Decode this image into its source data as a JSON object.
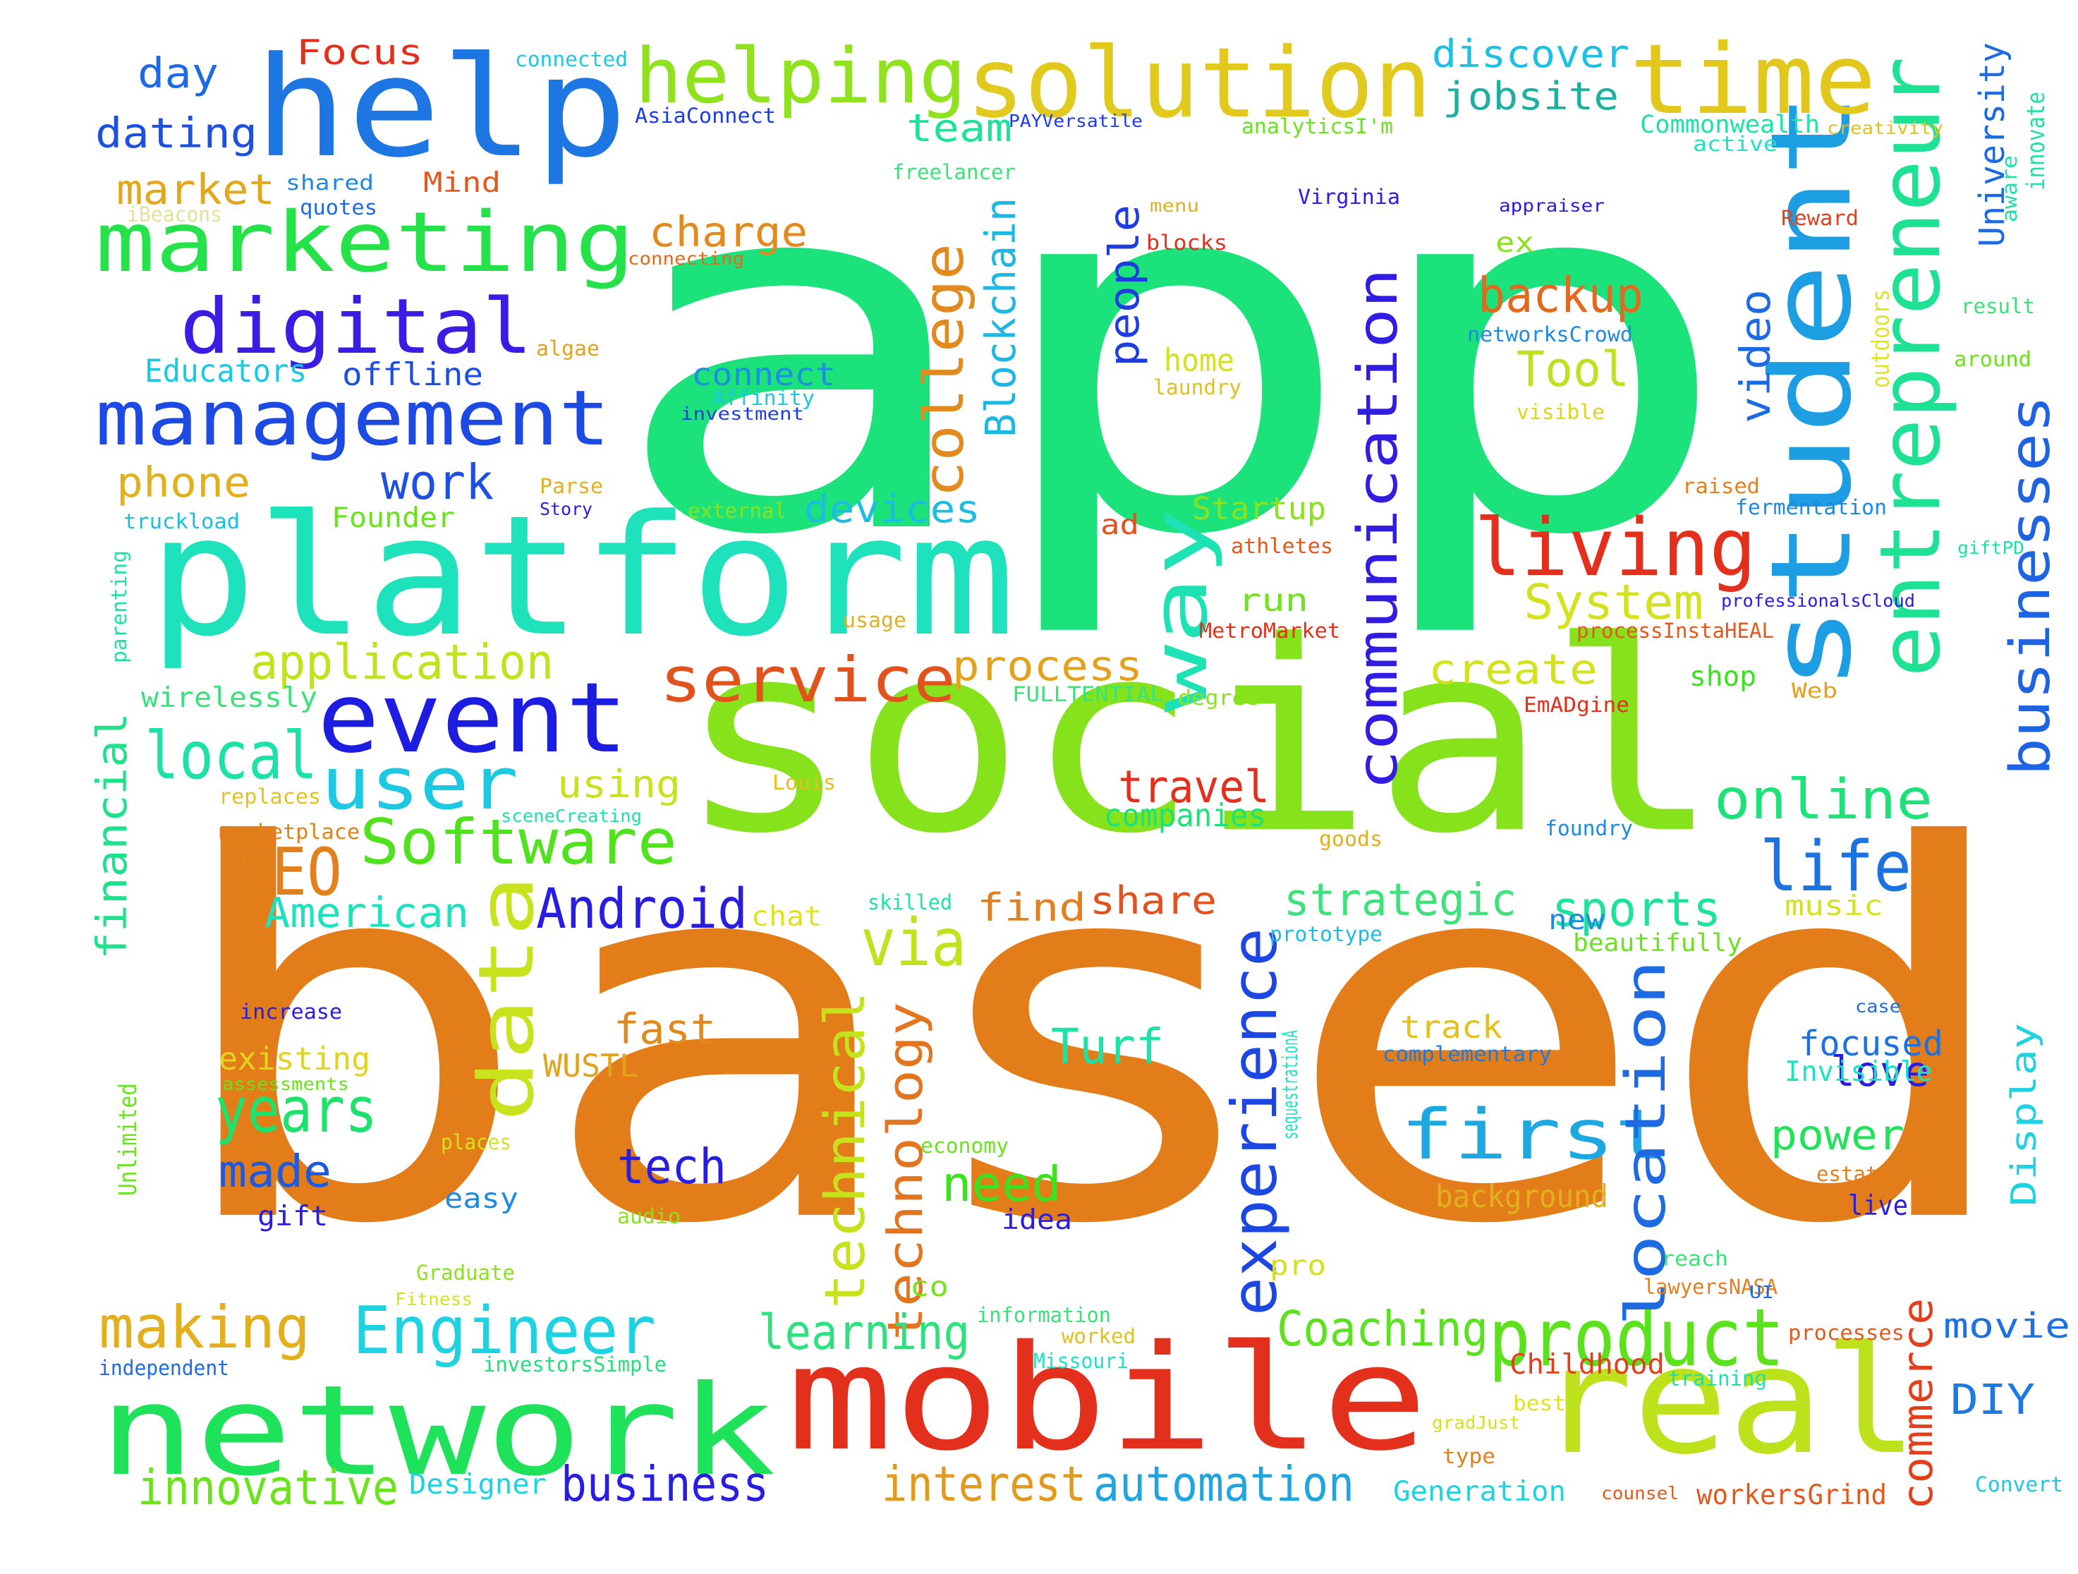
{
  "words": [
    {
      "text": "based",
      "color": "#e27d1a"
    },
    {
      "text": "app",
      "color": "#1be27a"
    },
    {
      "text": "social",
      "color": "#86e21b"
    },
    {
      "text": "network",
      "color": "#1de25a"
    },
    {
      "text": "mobile",
      "color": "#e2301d"
    },
    {
      "text": "real",
      "color": "#bde21b"
    },
    {
      "text": "platform",
      "color": "#1de2bb"
    },
    {
      "text": "help",
      "color": "#1d76e2"
    },
    {
      "text": "solution",
      "color": "#e2c91d"
    },
    {
      "text": "student",
      "color": "#1d9ee2"
    },
    {
      "text": "entrepreneur",
      "color": "#1de294"
    },
    {
      "text": "marketing",
      "color": "#25e24a"
    },
    {
      "text": "digital",
      "color": "#3a1de2"
    },
    {
      "text": "management",
      "color": "#1d4ae2"
    },
    {
      "text": "time",
      "color": "#e2c71d"
    },
    {
      "text": "helping",
      "color": "#8fe21d"
    },
    {
      "text": "event",
      "color": "#1d1de2"
    },
    {
      "text": "user",
      "color": "#1dc8e2"
    },
    {
      "text": "data",
      "color": "#c8e21d"
    },
    {
      "text": "product",
      "color": "#5be21d"
    },
    {
      "text": "living",
      "color": "#e2301d"
    },
    {
      "text": "businesses",
      "color": "#1d63e2"
    },
    {
      "text": "service",
      "color": "#e2521d"
    },
    {
      "text": "communication",
      "color": "#311de2"
    },
    {
      "text": "way",
      "color": "#1de2b5"
    },
    {
      "text": "Engineer",
      "color": "#1dd3e2"
    },
    {
      "text": "experience",
      "color": "#1d47e2"
    },
    {
      "text": "first",
      "color": "#1da8e2"
    },
    {
      "text": "Software",
      "color": "#4fe21d"
    },
    {
      "text": "location",
      "color": "#1d6ae2"
    },
    {
      "text": "making",
      "color": "#e2b01d"
    },
    {
      "text": "life",
      "color": "#1d72e2"
    },
    {
      "text": "Android",
      "color": "#2a1de2"
    },
    {
      "text": "college",
      "color": "#e28a1d"
    },
    {
      "text": "online",
      "color": "#1de27a"
    },
    {
      "text": "CEO",
      "color": "#e2801d"
    },
    {
      "text": "local",
      "color": "#1de2a8"
    },
    {
      "text": "via",
      "color": "#c1e21d"
    },
    {
      "text": "technical",
      "color": "#c6e21d"
    },
    {
      "text": "technology",
      "color": "#e2751d"
    },
    {
      "text": "commerce",
      "color": "#e2401d"
    },
    {
      "text": "Coaching",
      "color": "#5ae21d"
    },
    {
      "text": "learning",
      "color": "#2de27e"
    },
    {
      "text": "years",
      "color": "#1de26e"
    },
    {
      "text": "financial",
      "color": "#1de28a"
    },
    {
      "text": "application",
      "color": "#c1e21d"
    },
    {
      "text": "automation",
      "color": "#1da6e2"
    },
    {
      "text": "innovative",
      "color": "#6ce21d"
    },
    {
      "text": "business",
      "color": "#2a1de2"
    },
    {
      "text": "interest",
      "color": "#e29a1d"
    },
    {
      "text": "Blockchain",
      "color": "#1db8e2"
    },
    {
      "text": "backup",
      "color": "#e2691d"
    },
    {
      "text": "Tool",
      "color": "#bde21d"
    },
    {
      "text": "System",
      "color": "#d3e21d"
    },
    {
      "text": "video",
      "color": "#1d6ae2"
    },
    {
      "text": "University",
      "color": "#1d6ae2"
    },
    {
      "text": "travel",
      "color": "#e2301d"
    },
    {
      "text": "strategic",
      "color": "#3de27a"
    },
    {
      "text": "sports",
      "color": "#1de29e"
    },
    {
      "text": "American",
      "color": "#1de2c0"
    },
    {
      "text": "Turf",
      "color": "#1de2a8"
    },
    {
      "text": "need",
      "color": "#3ce21d"
    },
    {
      "text": "tech",
      "color": "#2a1de2"
    },
    {
      "text": "made",
      "color": "#1d5ae2"
    },
    {
      "text": "fast",
      "color": "#e2891d"
    },
    {
      "text": "power",
      "color": "#21e25a"
    },
    {
      "text": "love",
      "color": "#2a1de2"
    },
    {
      "text": "focused",
      "color": "#1d72e2"
    },
    {
      "text": "Display",
      "color": "#1dd3e2"
    },
    {
      "text": "DIY",
      "color": "#1d7ae2"
    },
    {
      "text": "movie",
      "color": "#1d72e2"
    },
    {
      "text": "create",
      "color": "#d3e21d"
    },
    {
      "text": "process",
      "color": "#e2a21d"
    },
    {
      "text": "devices",
      "color": "#1dbde2"
    },
    {
      "text": "people",
      "color": "#1d3de2"
    },
    {
      "text": "charge",
      "color": "#e28a1d"
    },
    {
      "text": "jobsite",
      "color": "#1db0a0"
    },
    {
      "text": "discover",
      "color": "#1dc0e2"
    },
    {
      "text": "team",
      "color": "#1de29a"
    },
    {
      "text": "work",
      "color": "#1d50e2"
    },
    {
      "text": "phone",
      "color": "#e2b01d"
    },
    {
      "text": "market",
      "color": "#e2a81d"
    },
    {
      "text": "day",
      "color": "#1d6ae2"
    },
    {
      "text": "dating",
      "color": "#1d50e2"
    },
    {
      "text": "Focus",
      "color": "#e2301d"
    },
    {
      "text": "Educators",
      "color": "#1dc8e2"
    },
    {
      "text": "offline",
      "color": "#1d50e2"
    },
    {
      "text": "connect",
      "color": "#1d90e2"
    },
    {
      "text": "home",
      "color": "#d3e21d"
    },
    {
      "text": "run",
      "color": "#72e21d"
    },
    {
      "text": "Startup",
      "color": "#8ae21d"
    },
    {
      "text": "using",
      "color": "#c8e21d"
    },
    {
      "text": "find",
      "color": "#e2801d"
    },
    {
      "text": "share",
      "color": "#e2521d"
    },
    {
      "text": "companies",
      "color": "#1de27a"
    },
    {
      "text": "wirelessly",
      "color": "#3ae27a"
    },
    {
      "text": "existing",
      "color": "#e2d31d"
    },
    {
      "text": "WUSTL",
      "color": "#e2a21d"
    },
    {
      "text": "track",
      "color": "#e2c01d"
    },
    {
      "text": "complementary",
      "color": "#1d7ae2"
    },
    {
      "text": "Invisible",
      "color": "#1de2c8"
    },
    {
      "text": "background",
      "color": "#e2b01d"
    },
    {
      "text": "easy",
      "color": "#1d8ae2"
    },
    {
      "text": "idea",
      "color": "#2a1de2"
    },
    {
      "text": "gift",
      "color": "#2a1de2"
    },
    {
      "text": "shop",
      "color": "#3ae21d"
    },
    {
      "text": "new",
      "color": "#1d8ae2"
    },
    {
      "text": "music",
      "color": "#d3e21d"
    },
    {
      "text": "beautifully",
      "color": "#6ae21d"
    },
    {
      "text": "co",
      "color": "#7ae21d"
    },
    {
      "text": "pro",
      "color": "#d3e21d"
    },
    {
      "text": "live",
      "color": "#2a1de2"
    },
    {
      "text": "Childhood",
      "color": "#e2401d"
    },
    {
      "text": "Generation",
      "color": "#1dd3e2"
    },
    {
      "text": "Designer",
      "color": "#1dd3e2"
    },
    {
      "text": "ad",
      "color": "#e2501d"
    },
    {
      "text": "ex",
      "color": "#8ae21d"
    },
    {
      "text": "Founder",
      "color": "#6ae21d"
    },
    {
      "text": "connected",
      "color": "#1dc8e2"
    },
    {
      "text": "Mind",
      "color": "#e2591d"
    },
    {
      "text": "quotes",
      "color": "#1d6ae2"
    },
    {
      "text": "shared",
      "color": "#1d8ae2"
    },
    {
      "text": "iBeacons",
      "color": "#e2e29a"
    },
    {
      "text": "AsiaConnect",
      "color": "#1d3de2"
    },
    {
      "text": "freelancer",
      "color": "#3ae27a"
    },
    {
      "text": "PAYVersatile",
      "color": "#1d3de2"
    },
    {
      "text": "analyticsI'm",
      "color": "#6ae21d"
    },
    {
      "text": "Commonwealth",
      "color": "#1de2a8"
    },
    {
      "text": "active",
      "color": "#1de2c8"
    },
    {
      "text": "creativity",
      "color": "#e2c01d"
    },
    {
      "text": "innovate",
      "color": "#1de2a8"
    },
    {
      "text": "aware",
      "color": "#1de2a8"
    },
    {
      "text": "menu",
      "color": "#e2b01d"
    },
    {
      "text": "Virginia",
      "color": "#2a1de2"
    },
    {
      "text": "appraiser",
      "color": "#2a1de2"
    },
    {
      "text": "Reward",
      "color": "#e2401d"
    },
    {
      "text": "blocks",
      "color": "#e2301d"
    },
    {
      "text": "connecting",
      "color": "#e26a1d"
    },
    {
      "text": "algae",
      "color": "#e2a21d"
    },
    {
      "text": "networksCrowd",
      "color": "#1d8ae2"
    },
    {
      "text": "result",
      "color": "#3ae27a"
    },
    {
      "text": "around",
      "color": "#6ae21d"
    },
    {
      "text": "outdoors",
      "color": "#e2e21d"
    },
    {
      "text": "laundry",
      "color": "#e2c01d"
    },
    {
      "text": "visible",
      "color": "#e2d31d"
    },
    {
      "text": "Affinity",
      "color": "#1dc8e2"
    },
    {
      "text": "investment",
      "color": "#1d3de2"
    },
    {
      "text": "truckload",
      "color": "#1dbde2"
    },
    {
      "text": "Parse",
      "color": "#e2b01d"
    },
    {
      "text": "Story",
      "color": "#2a1de2"
    },
    {
      "text": "external",
      "color": "#8ae21d"
    },
    {
      "text": "raised",
      "color": "#e2801d"
    },
    {
      "text": "fermentation",
      "color": "#1d8ae2"
    },
    {
      "text": "athletes",
      "color": "#e2591d"
    },
    {
      "text": "giftPD",
      "color": "#1de2a8"
    },
    {
      "text": "professionalsCloud",
      "color": "#2a1de2"
    },
    {
      "text": "parenting",
      "color": "#1de2a8"
    },
    {
      "text": "usage",
      "color": "#e2b01d"
    },
    {
      "text": "MetroMarket",
      "color": "#e2301d"
    },
    {
      "text": "processInstaHEAL",
      "color": "#e2591d"
    },
    {
      "text": "FULLTENTIAL",
      "color": "#3ae27a"
    },
    {
      "text": "degree",
      "color": "#8ae21d"
    },
    {
      "text": "EmADgine",
      "color": "#e2301d"
    },
    {
      "text": "Web",
      "color": "#e2a21d"
    },
    {
      "text": "replaces",
      "color": "#e2c01d"
    },
    {
      "text": "sceneCreating",
      "color": "#1de2a8"
    },
    {
      "text": "marketplace",
      "color": "#e2801d"
    },
    {
      "text": "Louis",
      "color": "#e2c01d"
    },
    {
      "text": "goods",
      "color": "#e2b01d"
    },
    {
      "text": "foundry",
      "color": "#1d8ae2"
    },
    {
      "text": "chat",
      "color": "#e2e21d"
    },
    {
      "text": "skilled",
      "color": "#1de2a8"
    },
    {
      "text": "prototype",
      "color": "#1dbde2"
    },
    {
      "text": "increase",
      "color": "#2a1de2"
    },
    {
      "text": "assessments",
      "color": "#6ae21d"
    },
    {
      "text": "sequestrationA",
      "color": "#1de2c8"
    },
    {
      "text": "case",
      "color": "#1d6ae2"
    },
    {
      "text": "Unlimited",
      "color": "#6ae21d"
    },
    {
      "text": "places",
      "color": "#d3e21d"
    },
    {
      "text": "economy",
      "color": "#6ae21d"
    },
    {
      "text": "estate",
      "color": "#e2801d"
    },
    {
      "text": "audio",
      "color": "#8ae21d"
    },
    {
      "text": "Graduate",
      "color": "#8ae21d"
    },
    {
      "text": "reach",
      "color": "#3ae27a"
    },
    {
      "text": "Fitness",
      "color": "#d3e21d"
    },
    {
      "text": "lawyersNASA",
      "color": "#e2801d"
    },
    {
      "text": "UI",
      "color": "#1d6ae2"
    },
    {
      "text": "information",
      "color": "#3ae27a"
    },
    {
      "text": "worked",
      "color": "#e2c01d"
    },
    {
      "text": "Missouri",
      "color": "#1de2c8"
    },
    {
      "text": "investorsSimple",
      "color": "#1de27a"
    },
    {
      "text": "independent",
      "color": "#1d6ae2"
    },
    {
      "text": "processes",
      "color": "#e2591d"
    },
    {
      "text": "training",
      "color": "#1de2a8"
    },
    {
      "text": "best",
      "color": "#e2e21d"
    },
    {
      "text": "gradJust",
      "color": "#d3e21d"
    },
    {
      "text": "type",
      "color": "#e2801d"
    },
    {
      "text": "counsel",
      "color": "#e2591d"
    },
    {
      "text": "workersGrind",
      "color": "#e2591d"
    },
    {
      "text": "Convert",
      "color": "#1dc8e2"
    }
  ]
}
